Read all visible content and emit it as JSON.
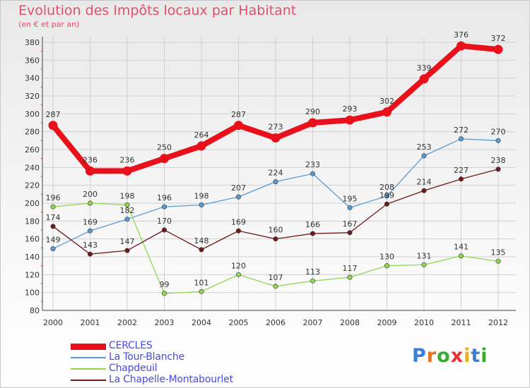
{
  "header": {
    "title": "Evolution des Impôts locaux par Habitant",
    "subtitle": "(en € et par an)"
  },
  "brand": {
    "text": "Proxiti",
    "colors": [
      "#3a7fd0",
      "#e87020",
      "#3aaa30",
      "#e83030",
      "#e8b020",
      "#3a7fd0",
      "#3aaa30"
    ]
  },
  "chart_data": {
    "type": "line",
    "title": "Evolution des Impôts locaux par Habitant",
    "subtitle": "(en € et par an)",
    "xlabel": "",
    "ylabel": "",
    "categories": [
      "2000",
      "2001",
      "2002",
      "2003",
      "2004",
      "2005",
      "2006",
      "2007",
      "2008",
      "2009",
      "2010",
      "2011",
      "2012"
    ],
    "ylim": [
      80,
      380
    ],
    "yticks": [
      80,
      100,
      120,
      140,
      160,
      180,
      200,
      220,
      240,
      260,
      280,
      300,
      320,
      340,
      360,
      380
    ],
    "grid": true,
    "legend_position": "bottom-left",
    "series": [
      {
        "name": "CERCLES",
        "color": "#e8101a",
        "values": [
          287,
          236,
          236,
          250,
          264,
          287,
          273,
          290,
          293,
          302,
          339,
          376,
          372
        ]
      },
      {
        "name": "La Tour-Blanche",
        "color": "#5c9bd0",
        "values": [
          149,
          169,
          182,
          196,
          198,
          207,
          224,
          233,
          195,
          208,
          253,
          272,
          270
        ]
      },
      {
        "name": "Chapdeuil",
        "color": "#90d850",
        "values": [
          196,
          200,
          198,
          99,
          101,
          120,
          107,
          113,
          117,
          130,
          131,
          141,
          135
        ]
      },
      {
        "name": "La Chapelle-Montabourlet",
        "color": "#6e1a1a",
        "values": [
          174,
          143,
          147,
          170,
          148,
          169,
          160,
          166,
          167,
          199,
          214,
          227,
          238
        ]
      }
    ]
  }
}
